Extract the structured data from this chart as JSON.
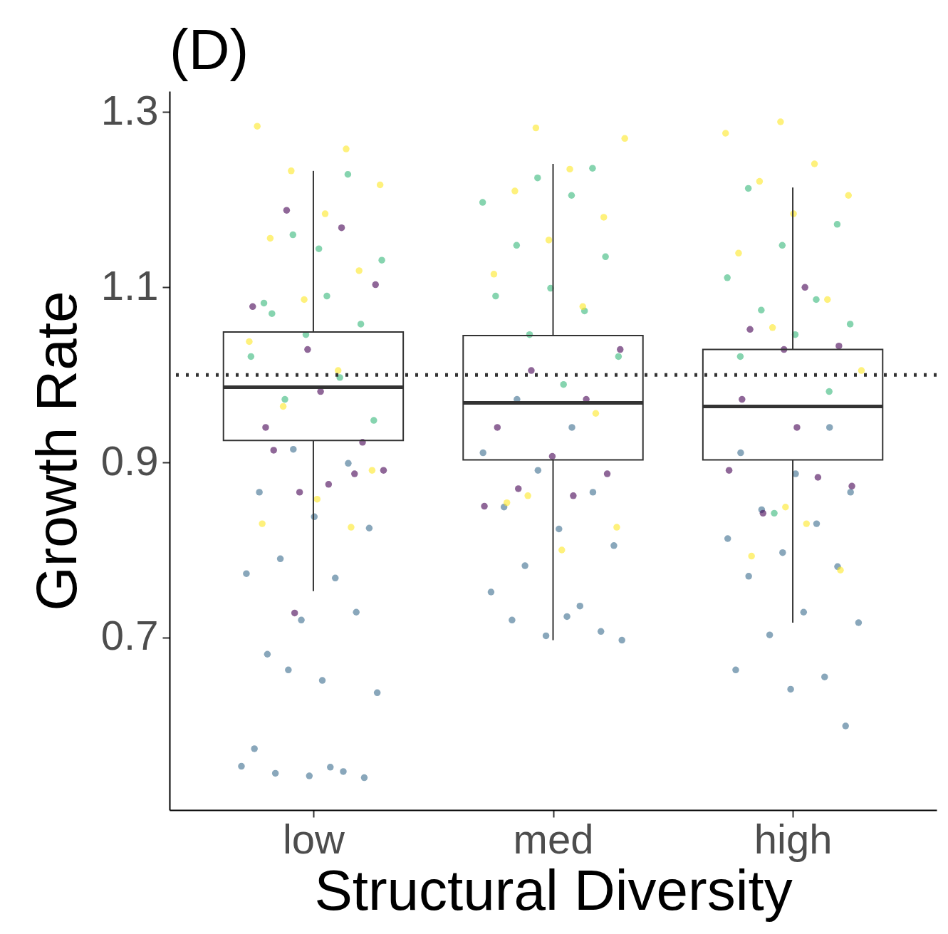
{
  "chart_data": {
    "type": "box",
    "title": "(D)",
    "xlabel": "Structural Diversity",
    "ylabel": "Growth Rate",
    "categories": [
      "low",
      "med",
      "high"
    ],
    "ylim": [
      0.503,
      1.324
    ],
    "yticks": [
      0.7,
      0.9,
      1.1,
      1.3
    ],
    "grid": false,
    "marker": "circle",
    "boxes": [
      {
        "low": 0.753,
        "q1": 0.925,
        "median": 0.986,
        "q3": 1.049,
        "high": 1.233
      },
      {
        "low": 0.697,
        "q1": 0.903,
        "median": 0.968,
        "q3": 1.045,
        "high": 1.241
      },
      {
        "low": 0.717,
        "q1": 0.903,
        "median": 0.964,
        "q3": 1.029,
        "high": 1.214
      }
    ],
    "ref_lines": [
      {
        "axis": "y",
        "value": 1.0,
        "label": null,
        "color": "#333333",
        "line_style": "dotted"
      }
    ],
    "series": [
      {
        "type": "scatter",
        "color": "#3b6c8e",
        "x": [
          "low",
          "low",
          "low",
          "low",
          "low",
          "low",
          "low",
          "low",
          "low",
          "low",
          "low",
          "low",
          "low",
          "low",
          "low",
          "low",
          "low",
          "low",
          "low",
          "low",
          "low",
          "med",
          "med",
          "med",
          "med",
          "med",
          "med",
          "med",
          "med",
          "med",
          "med",
          "med",
          "med",
          "med",
          "med",
          "med",
          "med",
          "high",
          "high",
          "high",
          "high",
          "high",
          "high",
          "high",
          "high",
          "high",
          "high",
          "high",
          "high",
          "high",
          "high",
          "high",
          "high",
          "high"
        ],
        "values": [
          0.553,
          0.552,
          0.545,
          0.54,
          0.542,
          0.573,
          0.547,
          0.663,
          0.637,
          0.651,
          0.681,
          0.729,
          0.72,
          0.773,
          0.768,
          0.79,
          0.825,
          0.838,
          0.866,
          0.899,
          0.915,
          0.697,
          0.724,
          0.72,
          0.707,
          0.702,
          0.752,
          0.736,
          0.782,
          0.805,
          0.824,
          0.849,
          0.866,
          0.891,
          0.911,
          0.94,
          0.972,
          0.599,
          0.641,
          0.663,
          0.655,
          0.703,
          0.717,
          0.729,
          0.77,
          0.781,
          0.797,
          0.813,
          0.83,
          0.846,
          0.866,
          0.887,
          0.911,
          0.94
        ]
      },
      {
        "type": "scatter",
        "color": "#440154",
        "x": [
          "low",
          "low",
          "low",
          "low",
          "low",
          "low",
          "low",
          "low",
          "low",
          "low",
          "low",
          "low",
          "low",
          "low",
          "med",
          "med",
          "med",
          "med",
          "med",
          "med",
          "med",
          "med",
          "med",
          "high",
          "high",
          "high",
          "high",
          "high",
          "high",
          "high",
          "high",
          "high",
          "high"
        ],
        "values": [
          0.728,
          0.891,
          0.875,
          0.914,
          0.923,
          1.029,
          1.078,
          1.168,
          1.188,
          1.103,
          0.981,
          0.94,
          0.887,
          0.866,
          0.85,
          0.862,
          0.87,
          0.887,
          0.907,
          0.94,
          0.972,
          1.005,
          1.029,
          1.1,
          1.052,
          1.033,
          1.029,
          0.891,
          0.883,
          0.842,
          0.873,
          0.94,
          0.972
        ]
      },
      {
        "type": "scatter",
        "color": "#35b779",
        "x": [
          "low",
          "low",
          "low",
          "low",
          "low",
          "low",
          "low",
          "low",
          "low",
          "low",
          "low",
          "low",
          "low",
          "med",
          "med",
          "med",
          "med",
          "med",
          "med",
          "med",
          "med",
          "med",
          "med",
          "med",
          "med",
          "high",
          "high",
          "high",
          "high",
          "high",
          "high",
          "high",
          "high",
          "high",
          "high",
          "high"
        ],
        "values": [
          1.229,
          1.16,
          1.131,
          1.09,
          1.07,
          1.058,
          1.046,
          1.021,
          0.997,
          0.972,
          0.948,
          1.144,
          1.082,
          1.236,
          1.225,
          1.197,
          1.205,
          1.148,
          1.135,
          1.099,
          1.09,
          1.073,
          1.046,
          1.021,
          0.989,
          1.213,
          1.172,
          1.148,
          1.111,
          1.086,
          1.074,
          1.058,
          1.046,
          1.021,
          0.981,
          0.842
        ]
      },
      {
        "type": "scatter",
        "color": "#fde725",
        "x": [
          "low",
          "low",
          "low",
          "low",
          "low",
          "low",
          "low",
          "low",
          "low",
          "low",
          "low",
          "low",
          "low",
          "low",
          "low",
          "med",
          "med",
          "med",
          "med",
          "med",
          "med",
          "med",
          "med",
          "med",
          "med",
          "med",
          "med",
          "med",
          "high",
          "high",
          "high",
          "high",
          "high",
          "high",
          "high",
          "high",
          "high",
          "high",
          "high",
          "high",
          "high",
          "high"
        ],
        "values": [
          1.284,
          1.258,
          1.233,
          1.217,
          1.184,
          1.156,
          1.119,
          1.086,
          1.038,
          1.005,
          0.964,
          0.891,
          0.858,
          0.83,
          0.826,
          1.282,
          1.27,
          1.235,
          1.21,
          1.18,
          1.154,
          1.115,
          1.078,
          0.862,
          0.826,
          0.8,
          0.854,
          0.956,
          1.289,
          1.276,
          1.241,
          1.221,
          1.205,
          1.184,
          1.139,
          1.086,
          1.054,
          1.005,
          0.83,
          0.793,
          0.777,
          0.849
        ]
      }
    ]
  }
}
